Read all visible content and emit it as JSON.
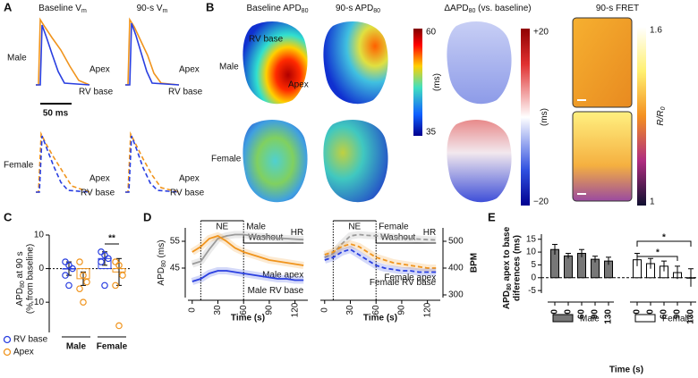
{
  "panel_a": {
    "label": "A",
    "columns": [
      [
        "Baseline V",
        "m"
      ],
      [
        "90-s V",
        "m"
      ]
    ],
    "rows": [
      "Male",
      "Female"
    ],
    "trace_labels": [
      "Apex",
      "RV base"
    ],
    "scale_bar": "50 ms"
  },
  "panel_b": {
    "label": "B",
    "columns": [
      [
        "Baseline APD",
        "80"
      ],
      [
        "90-s APD",
        "80"
      ],
      [
        "ΔAPD",
        "80",
        " (vs. baseline)"
      ],
      [
        "90-s FRET"
      ]
    ],
    "rows": [
      "Male",
      "Female"
    ],
    "region_labels": [
      "RV base",
      "Apex"
    ],
    "colorbars": [
      {
        "max": "60",
        "min": "35",
        "unit": [
          "(ms)"
        ]
      },
      {
        "max": "+20",
        "min": "−20",
        "unit": [
          "(ms)"
        ]
      },
      {
        "max": "1.6",
        "min": "1",
        "unit": [
          "R/R",
          "0"
        ]
      }
    ]
  },
  "chart_data": [
    {
      "type": "bar",
      "label": "C",
      "ylabel": [
        "APD",
        "80",
        " at 90 s"
      ],
      "ylabel_line2": "(% from baseline)",
      "categories": [
        "Male",
        "Female"
      ],
      "ylim": [
        -19,
        10
      ],
      "yticks": [
        -10,
        0,
        10
      ],
      "series": [
        {
          "name": "RV base",
          "color": "#2a3fe0",
          "values": [
            0,
            3
          ],
          "errors": [
            2,
            2
          ],
          "points": [
            [
              2,
              1,
              0,
              -2,
              -5
            ],
            [
              5,
              4,
              3,
              2,
              -5
            ]
          ]
        },
        {
          "name": "Apex",
          "color": "#f0941d",
          "values": [
            -3,
            -1
          ],
          "errors": [
            2,
            4
          ],
          "points": [
            [
              2,
              -2,
              -4,
              -6,
              -10
            ],
            [
              2,
              1,
              -2,
              -5,
              -17
            ]
          ]
        }
      ],
      "annotations": [
        "**"
      ]
    },
    {
      "type": "line",
      "label": "D",
      "ylabel": [
        "APD",
        "80",
        " (ms)"
      ],
      "y2label": "BPM",
      "xlabel": "Time (s)",
      "x": [
        0,
        10,
        20,
        30,
        40,
        50,
        60,
        70,
        80,
        90,
        100,
        110,
        120,
        130
      ],
      "xlim": [
        -5,
        135
      ],
      "xticks": [
        0,
        30,
        60,
        90,
        120
      ],
      "ylim": [
        34,
        60
      ],
      "yticks": [
        45,
        55
      ],
      "y2lim": [
        290,
        550
      ],
      "y2ticks": [
        300,
        400,
        500
      ],
      "ne_label": "NE",
      "ne_range": [
        10,
        60
      ],
      "washout_label": "Washout",
      "washout_range": [
        60,
        130
      ],
      "panels": [
        {
          "title": "Male",
          "dashed": false,
          "series": [
            {
              "name": "HR",
              "color": "#9a9a9a",
              "axis": "y2",
              "values": [
                415,
                425,
                470,
                510,
                520,
                525,
                525,
                520,
                518,
                515,
                512,
                510,
                508,
                506
              ]
            },
            {
              "name": "Male apex",
              "color": "#f0941d",
              "values": [
                51,
                53,
                56,
                57,
                55,
                52.5,
                51,
                50,
                49,
                48,
                47.5,
                47,
                46.5,
                46
              ]
            },
            {
              "name": "Male RV base",
              "color": "#2a3fe0",
              "values": [
                40,
                41,
                43,
                44,
                44,
                43.5,
                43,
                42.5,
                42,
                41.5,
                41,
                41,
                40.5,
                40.5
              ]
            }
          ]
        },
        {
          "title": "Female",
          "dashed": true,
          "series": [
            {
              "name": "HR",
              "color": "#9a9a9a",
              "axis": "y2",
              "values": [
                440,
                455,
                490,
                520,
                525,
                522,
                520,
                518,
                515,
                512,
                510,
                508,
                506,
                505
              ]
            },
            {
              "name": "Female apex",
              "color": "#f0941d",
              "values": [
                50,
                51,
                53,
                54,
                53,
                51,
                49,
                48,
                47,
                46.5,
                46,
                45.5,
                45,
                45
              ]
            },
            {
              "name": "Female RV base",
              "color": "#2a3fe0",
              "values": [
                48,
                49,
                51,
                52,
                50,
                48,
                46,
                45,
                44.5,
                44,
                44,
                43.5,
                43.5,
                43.5
              ]
            }
          ]
        }
      ]
    },
    {
      "type": "bar",
      "label": "E",
      "ylabel": [
        "APD",
        "80",
        " apex to base"
      ],
      "ylabel_line2": "diferences (ms)",
      "xlabel": "Time (s)",
      "categories": [
        "0",
        "30",
        "60",
        "90",
        "130"
      ],
      "ylim": [
        -6,
        17
      ],
      "yticks": [
        -5,
        0,
        5,
        10,
        15
      ],
      "series": [
        {
          "name": "Male",
          "color": "#777777",
          "values": [
            11,
            8.5,
            9.5,
            7.2,
            6.5
          ],
          "errors": [
            2,
            1,
            1.5,
            1.2,
            1.5
          ]
        },
        {
          "name": "Female",
          "color": "#ffffff",
          "values": [
            7,
            5.5,
            4.5,
            2,
            0
          ],
          "errors": [
            2.5,
            2,
            2,
            2.5,
            3.5
          ]
        }
      ],
      "annotations": [
        "*",
        "*"
      ]
    }
  ]
}
